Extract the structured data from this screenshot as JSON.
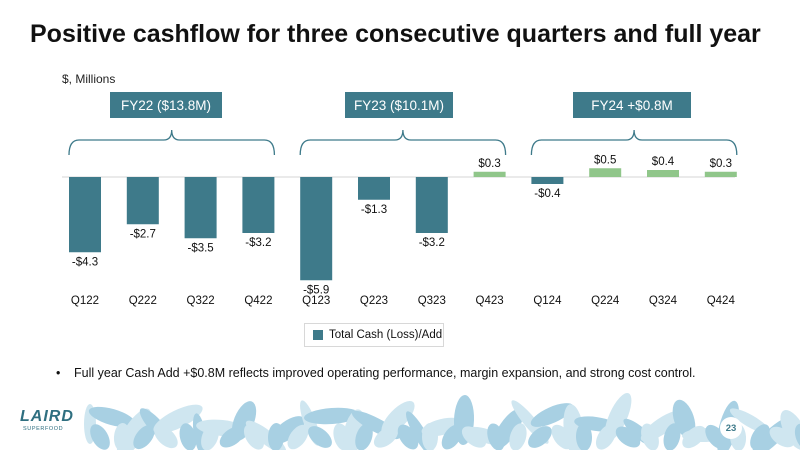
{
  "title": "Positive cashflow for three consecutive quarters and full year",
  "units_label": "$, Millions",
  "fy_groups": [
    {
      "label": "FY22 ($13.8M)",
      "quarters": [
        "Q122",
        "Q222",
        "Q322",
        "Q422"
      ]
    },
    {
      "label": "FY23 ($10.1M)",
      "quarters": [
        "Q123",
        "Q223",
        "Q323",
        "Q423"
      ]
    },
    {
      "label": "FY24 +$0.8M",
      "quarters": [
        "Q124",
        "Q224",
        "Q324",
        "Q424"
      ]
    }
  ],
  "chart_data": {
    "type": "bar",
    "title": "",
    "xlabel": "",
    "ylabel": "$, Millions",
    "ylim": [
      -6,
      0.6
    ],
    "categories": [
      "Q122",
      "Q222",
      "Q322",
      "Q422",
      "Q123",
      "Q223",
      "Q323",
      "Q423",
      "Q124",
      "Q224",
      "Q324",
      "Q424"
    ],
    "series": [
      {
        "name": "Total Cash (Loss)/Add",
        "values": [
          -4.3,
          -2.7,
          -3.5,
          -3.2,
          -5.9,
          -1.3,
          -3.2,
          0.3,
          -0.4,
          0.5,
          0.4,
          0.3
        ]
      }
    ],
    "data_labels": [
      "-$4.3",
      "-$2.7",
      "-$3.5",
      "-$3.2",
      "-$5.9",
      "-$1.3",
      "-$3.2",
      "$0.3",
      "-$0.4",
      "$0.5",
      "$0.4",
      "$0.3"
    ],
    "legend_position": "bottom"
  },
  "legend_label": "Total Cash (Loss)/Add",
  "bullet": "Full year Cash Add +$0.8M reflects improved operating performance, margin expansion, and strong cost control.",
  "bullet_marker": "•",
  "page_number": "23",
  "logo": {
    "word": "LAIRD",
    "sub": "SUPERFOOD"
  },
  "colors": {
    "negative": "#3e7a8a",
    "positive": "#90c68a",
    "accent": "#3e7a8a",
    "leaf_light": "#cfe6f0",
    "leaf_mid": "#a8d0e3"
  }
}
